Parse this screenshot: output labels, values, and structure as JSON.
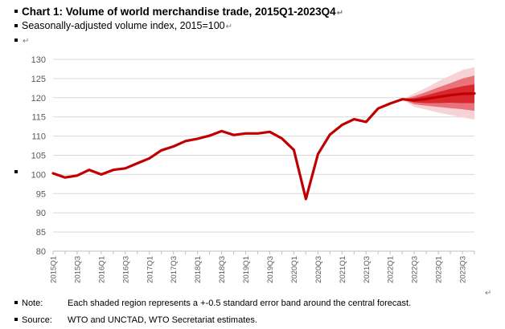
{
  "header": {
    "title": "Chart 1: Volume of world merchandise trade, 2015Q1-2023Q4",
    "subtitle": "Seasonally-adjusted volume index, 2015=100"
  },
  "footer": {
    "note_label": "Note:",
    "note_text": "Each shaded region represents a +-0.5 standard error band around the central forecast.",
    "source_label": "Source:",
    "source_text": "WTO and UNCTAD, WTO Secretariat estimates."
  },
  "colors": {
    "line": "#c00000",
    "band_inner": "#d9272e",
    "band_mid": "#e8737a",
    "band_outer": "#f8d3d5",
    "grid": "#d9d9d9",
    "axis_text": "#595959"
  },
  "chart_data": {
    "type": "line",
    "title": "Chart 1: Volume of world merchandise trade, 2015Q1-2023Q4",
    "subtitle": "Seasonally-adjusted volume index, 2015=100",
    "xlabel": "",
    "ylabel": "",
    "ylim": [
      80,
      130
    ],
    "yticks": [
      80,
      85,
      90,
      95,
      100,
      105,
      110,
      115,
      120,
      125,
      130
    ],
    "grid": true,
    "legend": "none",
    "x": [
      "2015Q1",
      "2015Q2",
      "2015Q3",
      "2015Q4",
      "2016Q1",
      "2016Q2",
      "2016Q3",
      "2016Q4",
      "2017Q1",
      "2017Q2",
      "2017Q3",
      "2017Q4",
      "2018Q1",
      "2018Q2",
      "2018Q3",
      "2018Q4",
      "2019Q1",
      "2019Q2",
      "2019Q3",
      "2019Q4",
      "2020Q1",
      "2020Q2",
      "2020Q3",
      "2020Q4",
      "2021Q1",
      "2021Q2",
      "2021Q3",
      "2021Q4",
      "2022Q1",
      "2022Q2",
      "2022Q3",
      "2022Q4",
      "2023Q1",
      "2023Q2",
      "2023Q3",
      "2023Q4"
    ],
    "x_tick_labels": [
      "2015Q1",
      "2015Q3",
      "2016Q1",
      "2016Q3",
      "2017Q1",
      "2017Q3",
      "2018Q1",
      "2018Q3",
      "2019Q1",
      "2019Q3",
      "2020Q1",
      "2020Q3",
      "2021Q1",
      "2021Q3",
      "2022Q1",
      "2022Q3",
      "2023Q1",
      "2023Q3"
    ],
    "series": [
      {
        "values": [
          100.3,
          99.2,
          99.7,
          101.2,
          100.0,
          101.2,
          101.6,
          102.9,
          104.2,
          106.3,
          107.3,
          108.7,
          109.3,
          110.1,
          111.3,
          110.3,
          110.7,
          110.7,
          111.1,
          109.4,
          106.4,
          93.6,
          105.3,
          110.4,
          112.9,
          114.4,
          113.7,
          117.2,
          118.5,
          119.6,
          119.3,
          119.7,
          120.2,
          120.7,
          121.0,
          121.1
        ]
      }
    ],
    "bands": {
      "start": "2022Q2",
      "x": [
        "2022Q2",
        "2022Q3",
        "2022Q4",
        "2023Q1",
        "2023Q2",
        "2023Q3",
        "2023Q4"
      ],
      "inner": {
        "low": [
          119.6,
          118.8,
          118.6,
          118.6,
          118.7,
          118.6,
          118.6
        ],
        "high": [
          119.6,
          119.9,
          120.6,
          121.5,
          122.3,
          123.0,
          123.5
        ]
      },
      "mid": {
        "low": [
          119.6,
          118.3,
          117.9,
          117.6,
          117.3,
          117.0,
          116.6
        ],
        "high": [
          119.6,
          120.4,
          121.5,
          122.7,
          123.8,
          125.0,
          125.8
        ]
      },
      "outer": {
        "low": [
          119.6,
          117.6,
          116.9,
          116.1,
          115.5,
          114.9,
          114.3
        ],
        "high": [
          119.6,
          121.1,
          122.6,
          124.3,
          125.8,
          127.2,
          128.0
        ]
      }
    }
  }
}
